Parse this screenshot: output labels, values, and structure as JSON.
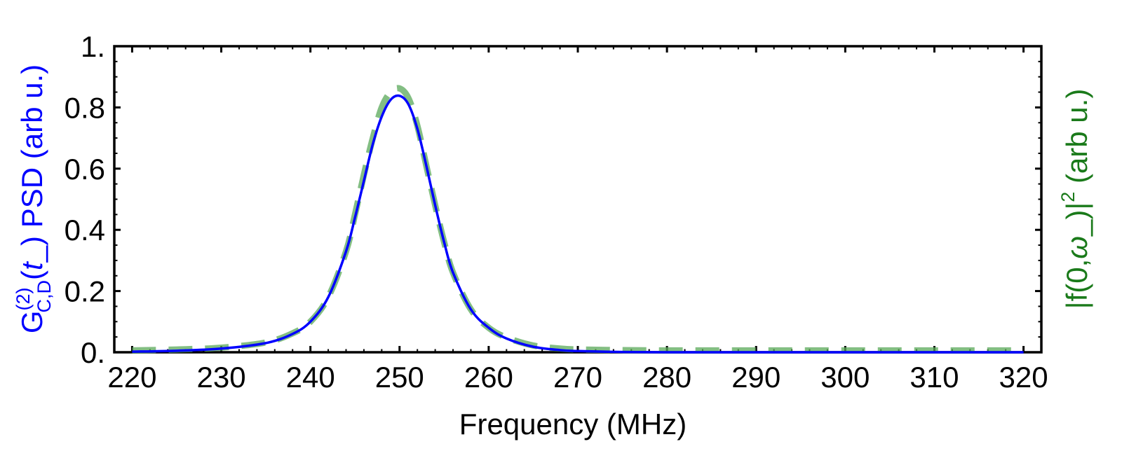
{
  "chart_data": {
    "type": "line",
    "xlabel": "Frequency (MHz)",
    "ylabel_left": {
      "base": "G",
      "superscript": "(2)",
      "subscript": "C,D",
      "paren_open": "(",
      "arg": "t",
      "arg_suffix": "_",
      "paren_close": ")",
      "rest": " PSD (arb u.)",
      "color": "#0000ff"
    },
    "ylabel_right": {
      "prefix": "|f(0,",
      "omega": "ω",
      "omega_suffix": "_",
      "suffix": ")|",
      "superscript": "2",
      "rest": " (arb u.)",
      "color": "#1a7a1a"
    },
    "xlim": [
      218,
      322
    ],
    "ylim": [
      0,
      1
    ],
    "x_ticks": [
      220,
      230,
      240,
      250,
      260,
      270,
      280,
      290,
      300,
      310,
      320
    ],
    "x_tick_labels": [
      "220",
      "230",
      "240",
      "250",
      "260",
      "270",
      "280",
      "290",
      "300",
      "310",
      "320"
    ],
    "y_ticks": [
      0,
      0.2,
      0.4,
      0.6,
      0.8,
      1.0
    ],
    "y_tick_labels": [
      "0.",
      "0.2",
      "0.4",
      "0.6",
      "0.8",
      "1."
    ],
    "grid": false,
    "series": [
      {
        "style": "solid",
        "color": "#0000ff",
        "x": [
          220,
          225,
          230,
          235,
          238,
          240,
          242,
          244,
          245,
          246,
          247,
          248,
          249,
          250,
          251,
          252,
          253,
          254,
          255,
          256,
          258,
          260,
          262,
          265,
          268,
          270,
          275,
          280,
          290,
          300,
          310,
          320
        ],
        "y": [
          0.002,
          0.005,
          0.012,
          0.03,
          0.06,
          0.1,
          0.18,
          0.33,
          0.44,
          0.56,
          0.68,
          0.77,
          0.825,
          0.838,
          0.81,
          0.73,
          0.61,
          0.48,
          0.36,
          0.26,
          0.14,
          0.08,
          0.045,
          0.018,
          0.007,
          0.004,
          0.001,
          0.0,
          0.0,
          0.0,
          0.0,
          0.0
        ]
      },
      {
        "style": "dashed",
        "color": "#5aa85a",
        "x": [
          220,
          225,
          230,
          235,
          238,
          240,
          242,
          244,
          245,
          246,
          247,
          248,
          249,
          250,
          251,
          252,
          253,
          254,
          255,
          256,
          258,
          260,
          262,
          265,
          268,
          270,
          275,
          280,
          290,
          300,
          310,
          320
        ],
        "y": [
          0.006,
          0.009,
          0.015,
          0.032,
          0.062,
          0.1,
          0.18,
          0.33,
          0.45,
          0.58,
          0.7,
          0.8,
          0.85,
          0.862,
          0.83,
          0.74,
          0.61,
          0.48,
          0.36,
          0.26,
          0.14,
          0.08,
          0.048,
          0.022,
          0.012,
          0.009,
          0.007,
          0.006,
          0.006,
          0.006,
          0.006,
          0.006
        ]
      }
    ]
  }
}
